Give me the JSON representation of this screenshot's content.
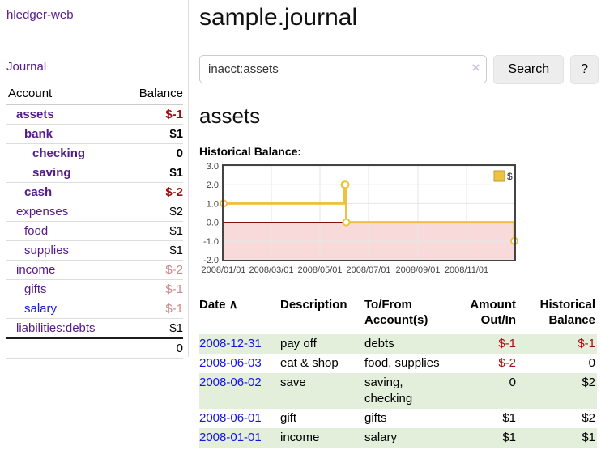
{
  "colors": {
    "link_purple": "#551A8B",
    "link_blue": "#1515e0",
    "negative_strong": "#a01010",
    "negative_dim": "#c98c8c",
    "row_highlight_green": "#e3eedb",
    "chart_line_gold": "#EDC240"
  },
  "sidebar": {
    "app_title": "hledger-web",
    "journal_link": "Journal",
    "accounts": {
      "headers": [
        "Account",
        "Balance"
      ],
      "rows": [
        {
          "name": "assets",
          "indent": 1,
          "bold": true,
          "balance": "$-1",
          "balance_tone": "neg-strong",
          "link_tone": "purple"
        },
        {
          "name": "bank",
          "indent": 2,
          "bold": true,
          "balance": "$1",
          "balance_tone": "",
          "link_tone": "purple"
        },
        {
          "name": "checking",
          "indent": 3,
          "bold": true,
          "balance": "0",
          "balance_tone": "",
          "link_tone": "purple"
        },
        {
          "name": "saving",
          "indent": 3,
          "bold": true,
          "balance": "$1",
          "balance_tone": "",
          "link_tone": "purple"
        },
        {
          "name": "cash",
          "indent": 2,
          "bold": true,
          "balance": "$-2",
          "balance_tone": "neg-strong",
          "link_tone": "purple"
        },
        {
          "name": "expenses",
          "indent": 1,
          "bold": false,
          "balance": "$2",
          "balance_tone": "",
          "link_tone": "purple"
        },
        {
          "name": "food",
          "indent": 2,
          "bold": false,
          "balance": "$1",
          "balance_tone": "",
          "link_tone": "purple"
        },
        {
          "name": "supplies",
          "indent": 2,
          "bold": false,
          "balance": "$1",
          "balance_tone": "",
          "link_tone": "purple"
        },
        {
          "name": "income",
          "indent": 1,
          "bold": false,
          "balance": "$-2",
          "balance_tone": "neg-dim",
          "link_tone": "purple"
        },
        {
          "name": "gifts",
          "indent": 2,
          "bold": false,
          "balance": "$-1",
          "balance_tone": "neg-dim",
          "link_tone": "purple"
        },
        {
          "name": "salary",
          "indent": 2,
          "bold": false,
          "balance": "$-1",
          "balance_tone": "neg-dim",
          "link_tone": "blue"
        },
        {
          "name": "liabilities:debts",
          "indent": 1,
          "bold": false,
          "balance": "$1",
          "balance_tone": "",
          "link_tone": "purple"
        }
      ],
      "total": "0"
    }
  },
  "main": {
    "title": "sample.journal",
    "search": {
      "value": "inacct:assets",
      "clear_icon": "×",
      "button_label": "Search",
      "help_label": "?"
    },
    "account_heading": "assets",
    "register": {
      "headers": [
        {
          "text": "Date",
          "sort": "∧",
          "align": "al",
          "col": "c1"
        },
        {
          "text": "Description",
          "align": "al",
          "col": "c2"
        },
        {
          "text": "To/From\nAccount(s)",
          "align": "al",
          "col": "c3"
        },
        {
          "text": "Amount\nOut/In",
          "align": "ar",
          "col": "c4"
        },
        {
          "text": "Historical\nBalance",
          "align": "ar",
          "col": "c5"
        }
      ],
      "rows": [
        {
          "date": "2008-12-31",
          "description": "pay off",
          "accounts": "debts",
          "amount": "$-1",
          "amount_neg": true,
          "balance": "$-1",
          "balance_neg": true,
          "highlight": true
        },
        {
          "date": "2008-06-03",
          "description": "eat & shop",
          "accounts": "food, supplies",
          "amount": "$-2",
          "amount_neg": true,
          "balance": "0",
          "balance_neg": false,
          "highlight": false
        },
        {
          "date": "2008-06-02",
          "description": "save",
          "accounts": "saving,\nchecking",
          "amount": "0",
          "amount_neg": false,
          "balance": "$2",
          "balance_neg": false,
          "highlight": true
        },
        {
          "date": "2008-06-01",
          "description": "gift",
          "accounts": "gifts",
          "amount": "$1",
          "amount_neg": false,
          "balance": "$2",
          "balance_neg": false,
          "highlight": false
        },
        {
          "date": "2008-01-01",
          "description": "income",
          "accounts": "salary",
          "amount": "$1",
          "amount_neg": false,
          "balance": "$1",
          "balance_neg": false,
          "highlight": true
        }
      ]
    }
  },
  "chart_data": {
    "type": "line",
    "title": "Historical Balance:",
    "step": true,
    "series": [
      {
        "name": "$",
        "color": "#EDC240",
        "points": [
          [
            "2008-01-01",
            1
          ],
          [
            "2008-06-01",
            2
          ],
          [
            "2008-06-02",
            2
          ],
          [
            "2008-06-03",
            0
          ],
          [
            "2008-12-31",
            -1
          ]
        ]
      }
    ],
    "xlim_dates": [
      "2008-01-01",
      "2008-12-31"
    ],
    "ylim": [
      -2,
      3
    ],
    "x_ticks": [
      "2008/01/01",
      "2008/03/01",
      "2008/05/01",
      "2008/07/01",
      "2008/09/01",
      "2008/11/01"
    ],
    "y_ticks": [
      "3.0",
      "2.0",
      "1.0",
      "0.0",
      "-1.0",
      "-2.0"
    ],
    "grid": true,
    "legend_position": "top-right",
    "negative_region_fill": "#f9dada",
    "zero_line_color": "#871111",
    "border_color": "#444444",
    "grid_color": "#e6e6e6"
  }
}
